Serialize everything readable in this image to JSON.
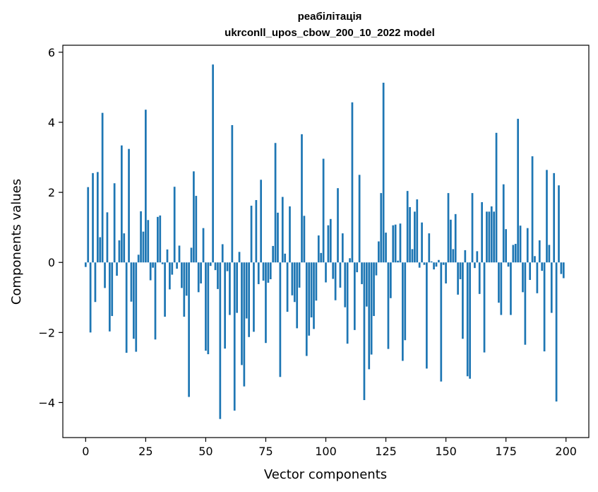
{
  "chart_data": {
    "type": "bar",
    "title": "реабілітація",
    "subtitle": "ukrconll_upos_cbow_200_10_2022 model",
    "xlabel": "Vector components",
    "ylabel": "Components values",
    "xlim": [
      -9.5,
      209.5
    ],
    "ylim": [
      -5.0,
      6.2
    ],
    "xticks": [
      0,
      25,
      50,
      75,
      100,
      125,
      150,
      175,
      200
    ],
    "xtick_labels": [
      "0",
      "25",
      "50",
      "75",
      "100",
      "125",
      "150",
      "175",
      "200"
    ],
    "yticks": [
      -4,
      -2,
      0,
      2,
      4,
      6
    ],
    "ytick_labels": [
      "−4",
      "−2",
      "0",
      "2",
      "4",
      "6"
    ],
    "grid": false,
    "color": "#1f77b4",
    "x": [
      0,
      1,
      2,
      3,
      4,
      5,
      6,
      7,
      8,
      9,
      10,
      11,
      12,
      13,
      14,
      15,
      16,
      17,
      18,
      19,
      20,
      21,
      22,
      23,
      24,
      25,
      26,
      27,
      28,
      29,
      30,
      31,
      32,
      33,
      34,
      35,
      36,
      37,
      38,
      39,
      40,
      41,
      42,
      43,
      44,
      45,
      46,
      47,
      48,
      49,
      50,
      51,
      52,
      53,
      54,
      55,
      56,
      57,
      58,
      59,
      60,
      61,
      62,
      63,
      64,
      65,
      66,
      67,
      68,
      69,
      70,
      71,
      72,
      73,
      74,
      75,
      76,
      77,
      78,
      79,
      80,
      81,
      82,
      83,
      84,
      85,
      86,
      87,
      88,
      89,
      90,
      91,
      92,
      93,
      94,
      95,
      96,
      97,
      98,
      99,
      100,
      101,
      102,
      103,
      104,
      105,
      106,
      107,
      108,
      109,
      110,
      111,
      112,
      113,
      114,
      115,
      116,
      117,
      118,
      119,
      120,
      121,
      122,
      123,
      124,
      125,
      126,
      127,
      128,
      129,
      130,
      131,
      132,
      133,
      134,
      135,
      136,
      137,
      138,
      139,
      140,
      141,
      142,
      143,
      144,
      145,
      146,
      147,
      148,
      149,
      150,
      151,
      152,
      153,
      154,
      155,
      156,
      157,
      158,
      159,
      160,
      161,
      162,
      163,
      164,
      165,
      166,
      167,
      168,
      169,
      170,
      171,
      172,
      173,
      174,
      175,
      176,
      177,
      178,
      179,
      180,
      181,
      182,
      183,
      184,
      185,
      186,
      187,
      188,
      189,
      190,
      191,
      192,
      193,
      194,
      195,
      196,
      197,
      198,
      199
    ],
    "values": [
      -0.13,
      2.15,
      -2.0,
      2.55,
      -1.13,
      2.58,
      0.72,
      4.27,
      -0.73,
      1.43,
      -1.97,
      -1.53,
      2.26,
      -0.38,
      0.63,
      3.34,
      0.83,
      -2.58,
      3.24,
      -1.12,
      -2.18,
      -2.55,
      0.22,
      1.46,
      0.88,
      4.36,
      1.21,
      -0.51,
      -0.15,
      -2.2,
      1.3,
      1.34,
      -0.05,
      -1.55,
      0.37,
      -0.77,
      -0.35,
      2.16,
      -0.18,
      0.48,
      -0.73,
      -1.55,
      -0.95,
      -3.84,
      0.42,
      2.6,
      1.9,
      -0.85,
      -0.6,
      0.98,
      -2.52,
      -2.62,
      -0.1,
      5.65,
      -0.22,
      -0.76,
      -4.47,
      0.52,
      -2.46,
      -0.25,
      -1.5,
      3.92,
      -4.23,
      -1.44,
      0.3,
      -2.93,
      -3.54,
      -1.6,
      -2.13,
      1.62,
      -1.98,
      1.78,
      -0.62,
      2.36,
      -0.52,
      -2.3,
      -0.58,
      -0.48,
      0.47,
      3.41,
      1.42,
      -3.27,
      1.87,
      0.25,
      -1.41,
      1.6,
      -0.94,
      -1.13,
      -1.88,
      -0.72,
      3.66,
      1.33,
      -2.67,
      -2.09,
      -1.57,
      -1.9,
      -1.09,
      0.77,
      0.27,
      2.96,
      -0.57,
      1.06,
      1.24,
      -0.47,
      -1.08,
      2.12,
      -0.72,
      0.83,
      -1.28,
      -2.32,
      0.12,
      4.57,
      -1.93,
      -0.28,
      2.5,
      -0.62,
      -3.93,
      -1.26,
      -3.05,
      -2.63,
      -1.53,
      -0.37,
      0.6,
      1.98,
      5.13,
      0.85,
      -2.47,
      -1.02,
      1.06,
      1.08,
      0.05,
      1.11,
      -2.81,
      -2.22,
      2.04,
      1.58,
      0.38,
      1.45,
      1.8,
      -0.15,
      1.14,
      -0.07,
      -3.03,
      0.83,
      0.03,
      -0.2,
      -0.12,
      0.07,
      -3.4,
      -0.07,
      -0.6,
      1.98,
      1.22,
      0.38,
      1.38,
      -0.92,
      -0.48,
      -2.18,
      0.35,
      -3.25,
      -3.32,
      1.98,
      -0.16,
      0.32,
      -0.9,
      1.72,
      -2.57,
      1.45,
      1.45,
      1.6,
      1.45,
      3.7,
      -1.15,
      -1.5,
      2.23,
      0.95,
      -0.12,
      -1.5,
      0.5,
      0.53,
      4.1,
      1.05,
      -0.85,
      -2.35,
      0.98,
      -0.5,
      3.03,
      0.18,
      -0.88,
      0.63,
      -0.24,
      -2.54,
      2.64,
      0.5,
      -1.44,
      2.55,
      -3.97,
      2.2,
      -0.33,
      -0.45
    ]
  }
}
